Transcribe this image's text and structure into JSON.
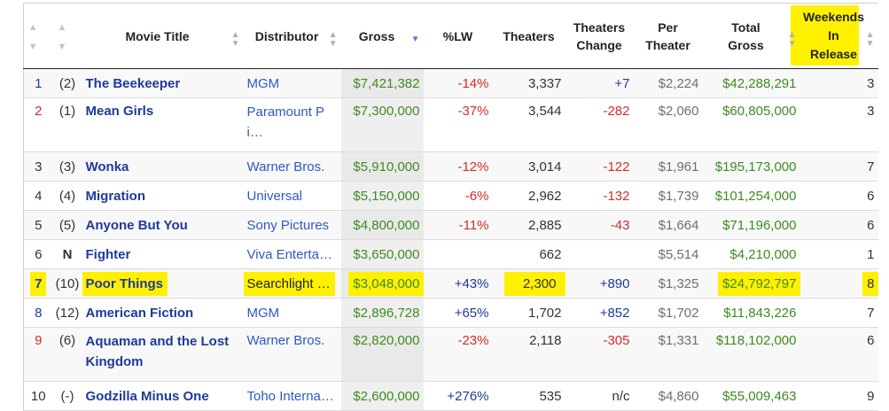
{
  "headers": {
    "movie_title": "Movie Title",
    "distributor": "Distributor",
    "gross": "Gross",
    "pct_lw": "%LW",
    "theaters": "Theaters",
    "theaters_change_1": "Theaters",
    "theaters_change_2": "Change",
    "per_theater_1": "Per",
    "per_theater_2": "Theater",
    "total_gross_1": "Total",
    "total_gross_2": "Gross",
    "weekends_1": "Weekends",
    "weekends_2": "In",
    "weekends_3": "Release"
  },
  "icons": {
    "sort": "sort-updown-icon",
    "sort_active": "sort-desc-icon"
  },
  "colors": {
    "title_link": "#1f3a9a",
    "distributor_link": "#2d59c5",
    "gross_green": "#3d8b1f",
    "negative_red": "#d62b2b",
    "highlight": "#fff000"
  },
  "rows": [
    {
      "rank": "1",
      "last_week": "(2)",
      "title": "The Beekeeper",
      "distributor": "MGM",
      "gross": "$7,421,382",
      "pct_lw": "-14%",
      "theaters": "3,337",
      "change": "+7",
      "per_theater": "$2,224",
      "total_gross": "$42,288,291",
      "weekends": "3"
    },
    {
      "rank": "2",
      "last_week": "(1)",
      "title": "Mean Girls",
      "distributor": "Paramount Pi…",
      "gross": "$7,300,000",
      "pct_lw": "-37%",
      "theaters": "3,544",
      "change": "-282",
      "per_theater": "$2,060",
      "total_gross": "$60,805,000",
      "weekends": "3"
    },
    {
      "rank": "3",
      "last_week": "(3)",
      "title": "Wonka",
      "distributor": "Warner Bros.",
      "gross": "$5,910,000",
      "pct_lw": "-12%",
      "theaters": "3,014",
      "change": "-122",
      "per_theater": "$1,961",
      "total_gross": "$195,173,000",
      "weekends": "7"
    },
    {
      "rank": "4",
      "last_week": "(4)",
      "title": "Migration",
      "distributor": "Universal",
      "gross": "$5,150,000",
      "pct_lw": "-6%",
      "theaters": "2,962",
      "change": "-132",
      "per_theater": "$1,739",
      "total_gross": "$101,254,000",
      "weekends": "6"
    },
    {
      "rank": "5",
      "last_week": "(5)",
      "title": "Anyone But You",
      "distributor": "Sony Pictures",
      "gross": "$4,800,000",
      "pct_lw": "-11%",
      "theaters": "2,885",
      "change": "-43",
      "per_theater": "$1,664",
      "total_gross": "$71,196,000",
      "weekends": "6"
    },
    {
      "rank": "6",
      "last_week": "N",
      "title": "Fighter",
      "distributor": "Viva Enterta…",
      "gross": "$3,650,000",
      "pct_lw": "",
      "theaters": "662",
      "change": "",
      "per_theater": "$5,514",
      "total_gross": "$4,210,000",
      "weekends": "1"
    },
    {
      "rank": "7",
      "last_week": "(10)",
      "title": "Poor Things",
      "distributor": "Searchlight …",
      "gross": "$3,048,000",
      "pct_lw": "+43%",
      "theaters": "2,300",
      "change": "+890",
      "per_theater": "$1,325",
      "total_gross": "$24,792,797",
      "weekends": "8"
    },
    {
      "rank": "8",
      "last_week": "(12)",
      "title": "American Fiction",
      "distributor": "MGM",
      "gross": "$2,896,728",
      "pct_lw": "+65%",
      "theaters": "1,702",
      "change": "+852",
      "per_theater": "$1,702",
      "total_gross": "$11,843,226",
      "weekends": "7"
    },
    {
      "rank": "9",
      "last_week": "(6)",
      "title": "Aquaman and the Lost Kingdom",
      "distributor": "Warner Bros.",
      "gross": "$2,820,000",
      "pct_lw": "-23%",
      "theaters": "2,118",
      "change": "-305",
      "per_theater": "$1,331",
      "total_gross": "$118,102,000",
      "weekends": "6"
    },
    {
      "rank": "10",
      "last_week": "(-)",
      "title": "Godzilla Minus One",
      "distributor": "Toho Interna…",
      "gross": "$2,600,000",
      "pct_lw": "+276%",
      "theaters": "535",
      "change": "n/c",
      "per_theater": "$4,860",
      "total_gross": "$55,009,463",
      "weekends": "9"
    }
  ]
}
